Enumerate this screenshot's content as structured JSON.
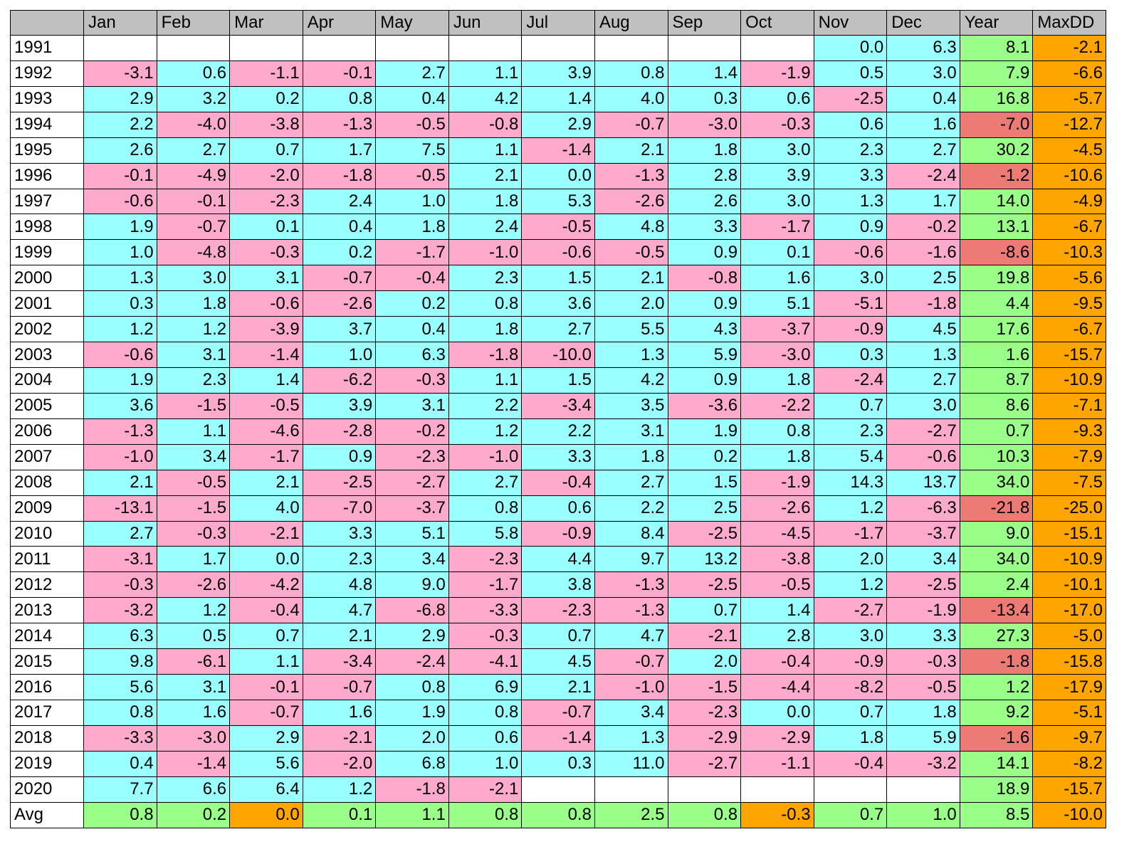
{
  "colors": {
    "positive": "#99FFFF",
    "negative": "#FFAACC",
    "year_positive": "#99FF88",
    "year_negative": "#EE7A76",
    "maxdd": "#FFA500",
    "avg_positive": "#99FF88",
    "avg_negative": "#FFA500",
    "header": "#C0C0C0",
    "empty": "#FFFFFF"
  },
  "chart_data": {
    "type": "table",
    "columns": [
      "",
      "Jan",
      "Feb",
      "Mar",
      "Apr",
      "May",
      "Jun",
      "Jul",
      "Aug",
      "Sep",
      "Oct",
      "Nov",
      "Dec",
      "Year",
      "MaxDD"
    ],
    "rows": [
      {
        "label": "1991",
        "values": [
          null,
          null,
          null,
          null,
          null,
          null,
          null,
          null,
          null,
          null,
          "0.0",
          "6.3",
          "8.1",
          "-2.1"
        ]
      },
      {
        "label": "1992",
        "values": [
          "-3.1",
          "0.6",
          "-1.1",
          "-0.1",
          "2.7",
          "1.1",
          "3.9",
          "0.8",
          "1.4",
          "-1.9",
          "0.5",
          "3.0",
          "7.9",
          "-6.6"
        ]
      },
      {
        "label": "1993",
        "values": [
          "2.9",
          "3.2",
          "0.2",
          "0.8",
          "0.4",
          "4.2",
          "1.4",
          "4.0",
          "0.3",
          "0.6",
          "-2.5",
          "0.4",
          "16.8",
          "-5.7"
        ]
      },
      {
        "label": "1994",
        "values": [
          "2.2",
          "-4.0",
          "-3.8",
          "-1.3",
          "-0.5",
          "-0.8",
          "2.9",
          "-0.7",
          "-3.0",
          "-0.3",
          "0.6",
          "1.6",
          "-7.0",
          "-12.7"
        ]
      },
      {
        "label": "1995",
        "values": [
          "2.6",
          "2.7",
          "0.7",
          "1.7",
          "7.5",
          "1.1",
          "-1.4",
          "2.1",
          "1.8",
          "3.0",
          "2.3",
          "2.7",
          "30.2",
          "-4.5"
        ]
      },
      {
        "label": "1996",
        "values": [
          "-0.1",
          "-4.9",
          "-2.0",
          "-1.8",
          "-0.5",
          "2.1",
          "0.0",
          "-1.3",
          "2.8",
          "3.9",
          "3.3",
          "-2.4",
          "-1.2",
          "-10.6"
        ]
      },
      {
        "label": "1997",
        "values": [
          "-0.6",
          "-0.1",
          "-2.3",
          "2.4",
          "1.0",
          "1.8",
          "5.3",
          "-2.6",
          "2.6",
          "3.0",
          "1.3",
          "1.7",
          "14.0",
          "-4.9"
        ]
      },
      {
        "label": "1998",
        "values": [
          "1.9",
          "-0.7",
          "0.1",
          "0.4",
          "1.8",
          "2.4",
          "-0.5",
          "4.8",
          "3.3",
          "-1.7",
          "0.9",
          "-0.2",
          "13.1",
          "-6.7"
        ]
      },
      {
        "label": "1999",
        "values": [
          "1.0",
          "-4.8",
          "-0.3",
          "0.2",
          "-1.7",
          "-1.0",
          "-0.6",
          "-0.5",
          "0.9",
          "0.1",
          "-0.6",
          "-1.6",
          "-8.6",
          "-10.3"
        ]
      },
      {
        "label": "2000",
        "values": [
          "1.3",
          "3.0",
          "3.1",
          "-0.7",
          "-0.4",
          "2.3",
          "1.5",
          "2.1",
          "-0.8",
          "1.6",
          "3.0",
          "2.5",
          "19.8",
          "-5.6"
        ]
      },
      {
        "label": "2001",
        "values": [
          "0.3",
          "1.8",
          "-0.6",
          "-2.6",
          "0.2",
          "0.8",
          "3.6",
          "2.0",
          "0.9",
          "5.1",
          "-5.1",
          "-1.8",
          "4.4",
          "-9.5"
        ]
      },
      {
        "label": "2002",
        "values": [
          "1.2",
          "1.2",
          "-3.9",
          "3.7",
          "0.4",
          "1.8",
          "2.7",
          "5.5",
          "4.3",
          "-3.7",
          "-0.9",
          "4.5",
          "17.6",
          "-6.7"
        ]
      },
      {
        "label": "2003",
        "values": [
          "-0.6",
          "3.1",
          "-1.4",
          "1.0",
          "6.3",
          "-1.8",
          "-10.0",
          "1.3",
          "5.9",
          "-3.0",
          "0.3",
          "1.3",
          "1.6",
          "-15.7"
        ]
      },
      {
        "label": "2004",
        "values": [
          "1.9",
          "2.3",
          "1.4",
          "-6.2",
          "-0.3",
          "1.1",
          "1.5",
          "4.2",
          "0.9",
          "1.8",
          "-2.4",
          "2.7",
          "8.7",
          "-10.9"
        ]
      },
      {
        "label": "2005",
        "values": [
          "3.6",
          "-1.5",
          "-0.5",
          "3.9",
          "3.1",
          "2.2",
          "-3.4",
          "3.5",
          "-3.6",
          "-2.2",
          "0.7",
          "3.0",
          "8.6",
          "-7.1"
        ]
      },
      {
        "label": "2006",
        "values": [
          "-1.3",
          "1.1",
          "-4.6",
          "-2.8",
          "-0.2",
          "1.2",
          "2.2",
          "3.1",
          "1.9",
          "0.8",
          "2.3",
          "-2.7",
          "0.7",
          "-9.3"
        ]
      },
      {
        "label": "2007",
        "values": [
          "-1.0",
          "3.4",
          "-1.7",
          "0.9",
          "-2.3",
          "-1.0",
          "3.3",
          "1.8",
          "0.2",
          "1.8",
          "5.4",
          "-0.6",
          "10.3",
          "-7.9"
        ]
      },
      {
        "label": "2008",
        "values": [
          "2.1",
          "-0.5",
          "2.1",
          "-2.5",
          "-2.7",
          "2.7",
          "-0.4",
          "2.7",
          "1.5",
          "-1.9",
          "14.3",
          "13.7",
          "34.0",
          "-7.5"
        ]
      },
      {
        "label": "2009",
        "values": [
          "-13.1",
          "-1.5",
          "4.0",
          "-7.0",
          "-3.7",
          "0.8",
          "0.6",
          "2.2",
          "2.5",
          "-2.6",
          "1.2",
          "-6.3",
          "-21.8",
          "-25.0"
        ]
      },
      {
        "label": "2010",
        "values": [
          "2.7",
          "-0.3",
          "-2.1",
          "3.3",
          "5.1",
          "5.8",
          "-0.9",
          "8.4",
          "-2.5",
          "-4.5",
          "-1.7",
          "-3.7",
          "9.0",
          "-15.1"
        ]
      },
      {
        "label": "2011",
        "values": [
          "-3.1",
          "1.7",
          "0.0",
          "2.3",
          "3.4",
          "-2.3",
          "4.4",
          "9.7",
          "13.2",
          "-3.8",
          "2.0",
          "3.4",
          "34.0",
          "-10.9"
        ]
      },
      {
        "label": "2012",
        "values": [
          "-0.3",
          "-2.6",
          "-4.2",
          "4.8",
          "9.0",
          "-1.7",
          "3.8",
          "-1.3",
          "-2.5",
          "-0.5",
          "1.2",
          "-2.5",
          "2.4",
          "-10.1"
        ]
      },
      {
        "label": "2013",
        "values": [
          "-3.2",
          "1.2",
          "-0.4",
          "4.7",
          "-6.8",
          "-3.3",
          "-2.3",
          "-1.3",
          "0.7",
          "1.4",
          "-2.7",
          "-1.9",
          "-13.4",
          "-17.0"
        ]
      },
      {
        "label": "2014",
        "values": [
          "6.3",
          "0.5",
          "0.7",
          "2.1",
          "2.9",
          "-0.3",
          "0.7",
          "4.7",
          "-2.1",
          "2.8",
          "3.0",
          "3.3",
          "27.3",
          "-5.0"
        ]
      },
      {
        "label": "2015",
        "values": [
          "9.8",
          "-6.1",
          "1.1",
          "-3.4",
          "-2.4",
          "-4.1",
          "4.5",
          "-0.7",
          "2.0",
          "-0.4",
          "-0.9",
          "-0.3",
          "-1.8",
          "-15.8"
        ]
      },
      {
        "label": "2016",
        "values": [
          "5.6",
          "3.1",
          "-0.1",
          "-0.7",
          "0.8",
          "6.9",
          "2.1",
          "-1.0",
          "-1.5",
          "-4.4",
          "-8.2",
          "-0.5",
          "1.2",
          "-17.9"
        ]
      },
      {
        "label": "2017",
        "values": [
          "0.8",
          "1.6",
          "-0.7",
          "1.6",
          "1.9",
          "0.8",
          "-0.7",
          "3.4",
          "-2.3",
          "0.0",
          "0.7",
          "1.8",
          "9.2",
          "-5.1"
        ]
      },
      {
        "label": "2018",
        "values": [
          "-3.3",
          "-3.0",
          "2.9",
          "-2.1",
          "2.0",
          "0.6",
          "-1.4",
          "1.3",
          "-2.9",
          "-2.9",
          "1.8",
          "5.9",
          "-1.6",
          "-9.7"
        ]
      },
      {
        "label": "2019",
        "values": [
          "0.4",
          "-1.4",
          "5.6",
          "-2.0",
          "6.8",
          "1.0",
          "0.3",
          "11.0",
          "-2.7",
          "-1.1",
          "-0.4",
          "-3.2",
          "14.1",
          "-8.2"
        ]
      },
      {
        "label": "2020",
        "values": [
          "7.7",
          "6.6",
          "6.4",
          "1.2",
          "-1.8",
          "-2.1",
          null,
          null,
          null,
          null,
          null,
          null,
          "18.9",
          "-15.7"
        ]
      },
      {
        "label": "Avg",
        "values": [
          "0.8",
          "0.2",
          "0.0",
          "0.1",
          "1.1",
          "0.8",
          "0.8",
          "2.5",
          "0.8",
          "-0.3",
          "0.7",
          "1.0",
          "8.5",
          "-10.0"
        ]
      }
    ]
  }
}
